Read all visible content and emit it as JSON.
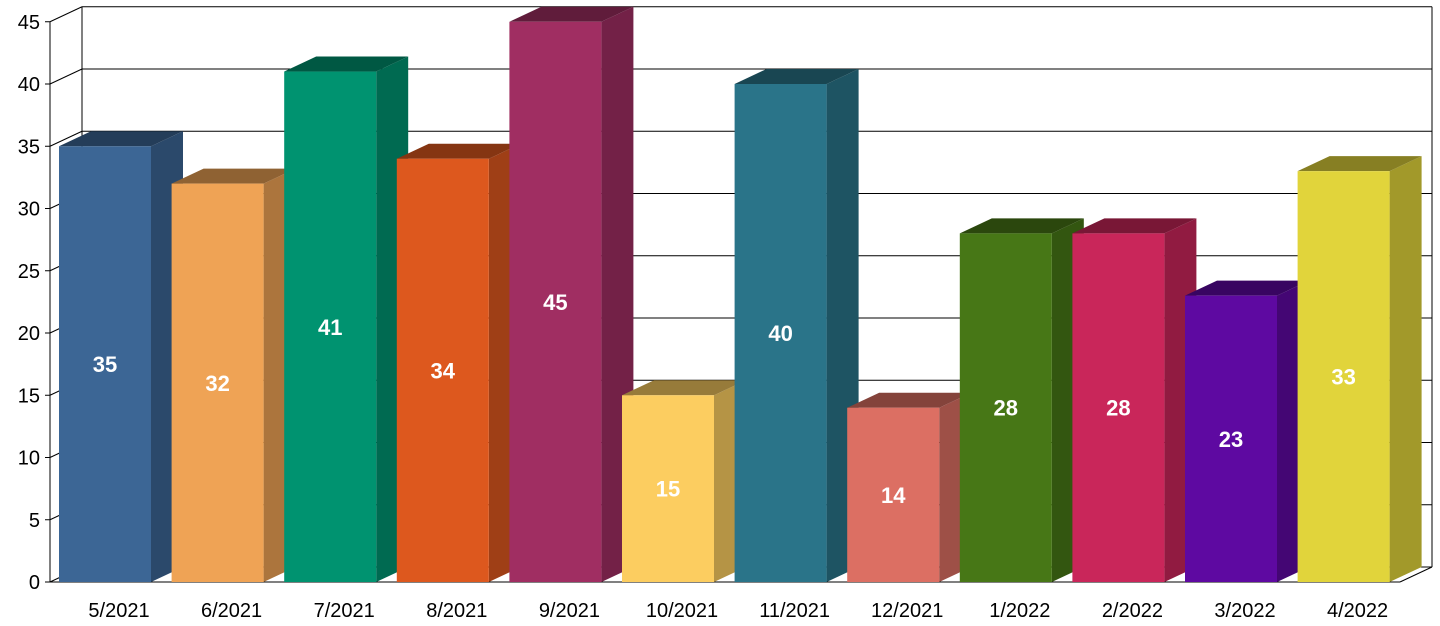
{
  "chart_data": {
    "type": "bar",
    "title": "",
    "xlabel": "",
    "ylabel": "",
    "ylim": [
      0,
      45
    ],
    "yticks": [
      0,
      5,
      10,
      15,
      20,
      25,
      30,
      35,
      40,
      45
    ],
    "grid": true,
    "three_d": true,
    "categories": [
      "5/2021",
      "6/2021",
      "7/2021",
      "8/2021",
      "9/2021",
      "10/2021",
      "11/2021",
      "12/2021",
      "1/2022",
      "2/2022",
      "3/2022",
      "4/2022"
    ],
    "values": [
      35,
      32,
      41,
      34,
      45,
      15,
      40,
      14,
      28,
      28,
      23,
      33
    ],
    "data_labels": [
      "35",
      "32",
      "41",
      "34",
      "45",
      "15",
      "40",
      "14",
      "28",
      "28",
      "23",
      "33"
    ],
    "colors": [
      "#3c6695",
      "#efa355",
      "#009370",
      "#dd581e",
      "#a02e62",
      "#fccd60",
      "#2a7489",
      "#dc6f63",
      "#477716",
      "#c9265a",
      "#5e09a1",
      "#e1d43b"
    ]
  }
}
